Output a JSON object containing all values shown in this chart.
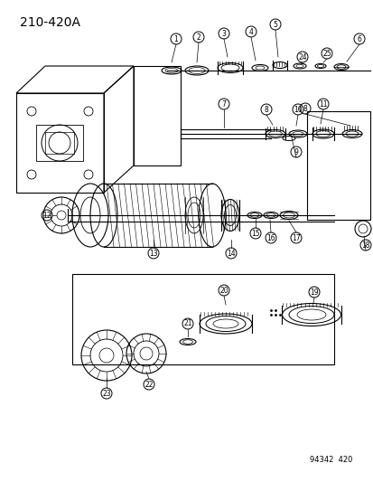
{
  "title": "210-420A",
  "ref_number": "94342  420",
  "bg_color": "#ffffff",
  "line_color": "#000000",
  "fig_width": 4.14,
  "fig_height": 5.33,
  "dpi": 100
}
